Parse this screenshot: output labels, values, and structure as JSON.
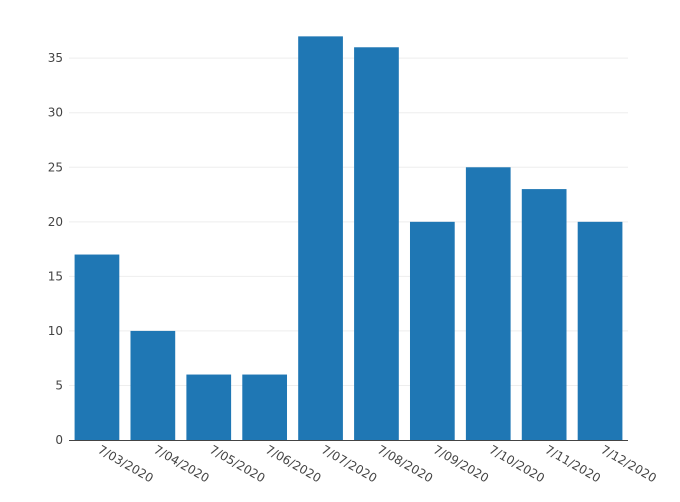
{
  "chart_data": {
    "type": "bar",
    "title": "",
    "xlabel": "",
    "ylabel": "",
    "categories": [
      "7/03/2020",
      "7/04/2020",
      "7/05/2020",
      "7/06/2020",
      "7/07/2020",
      "7/08/2020",
      "7/09/2020",
      "7/10/2020",
      "7/11/2020",
      "7/12/2020"
    ],
    "values": [
      17,
      10,
      6,
      6,
      37,
      36,
      20,
      25,
      23,
      20
    ],
    "ylim": [
      0,
      38.5
    ],
    "yticks": [
      0,
      5,
      10,
      15,
      20,
      25,
      30,
      35
    ],
    "grid": true,
    "legend": "none",
    "bar_color": "#1f77b4",
    "grid_color": "#eeeeee",
    "axis_color": "#444444"
  }
}
